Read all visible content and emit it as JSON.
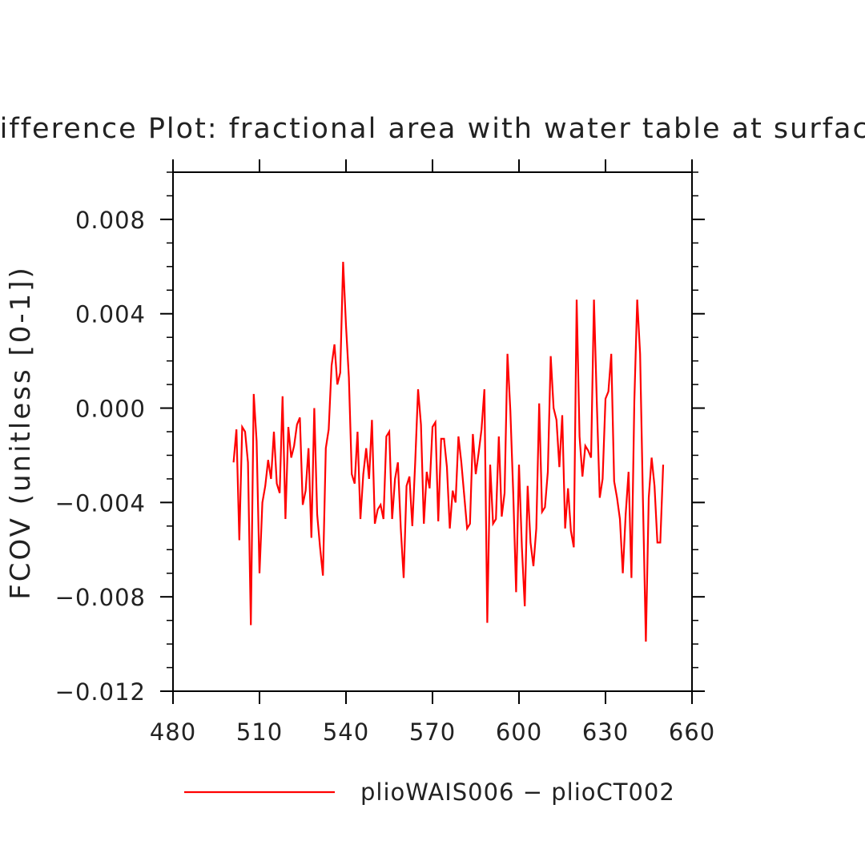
{
  "chart_data": {
    "type": "line",
    "title": "Difference Plot: fractional area with water table at surface",
    "xlabel": "",
    "ylabel": "FCOV   (unitless [0-1])",
    "xlim": [
      480,
      660
    ],
    "ylim": [
      -0.012,
      0.01
    ],
    "xticks": [
      480,
      510,
      540,
      570,
      600,
      630,
      660
    ],
    "xtick_labels": [
      "480",
      "510",
      "540",
      "570",
      "600",
      "630",
      "660"
    ],
    "yticks": [
      -0.012,
      -0.008,
      -0.004,
      0.0,
      0.004,
      0.008
    ],
    "ytick_labels": [
      "−0.012",
      "−0.008",
      "−0.004",
      "0.000",
      "0.004",
      "0.008"
    ],
    "grid": false,
    "legend_position": "bottom",
    "series": [
      {
        "name": "plioWAIS006 − plioCT002",
        "color": "#ff0000",
        "x": [
          501,
          502,
          503,
          504,
          505,
          506,
          507,
          508,
          509,
          510,
          511,
          512,
          513,
          514,
          515,
          516,
          517,
          518,
          519,
          520,
          521,
          522,
          523,
          524,
          525,
          526,
          527,
          528,
          529,
          530,
          531,
          532,
          533,
          534,
          535,
          536,
          537,
          538,
          539,
          540,
          541,
          542,
          543,
          544,
          545,
          546,
          547,
          548,
          549,
          550,
          551,
          552,
          553,
          554,
          555,
          556,
          557,
          558,
          559,
          560,
          561,
          562,
          563,
          564,
          565,
          566,
          567,
          568,
          569,
          570,
          571,
          572,
          573,
          574,
          575,
          576,
          577,
          578,
          579,
          580,
          581,
          582,
          583,
          584,
          585,
          586,
          587,
          588,
          589,
          590,
          591,
          592,
          593,
          594,
          595,
          596,
          597,
          598,
          599,
          600,
          601,
          602,
          603,
          604,
          605,
          606,
          607,
          608,
          609,
          610,
          611,
          612,
          613,
          614,
          615,
          616,
          617,
          618,
          619,
          620,
          621,
          622,
          623,
          624,
          625,
          626,
          627,
          628,
          629,
          630,
          631,
          632,
          633,
          634,
          635,
          636,
          637,
          638,
          639,
          640,
          641,
          642,
          643,
          644,
          645,
          646,
          647,
          648,
          649,
          650
        ],
        "values": [
          -0.0023,
          -0.0009,
          -0.0056,
          -0.0008,
          -0.001,
          -0.0023,
          -0.0092,
          0.0006,
          -0.0014,
          -0.007,
          -0.004,
          -0.0033,
          -0.0022,
          -0.003,
          -0.001,
          -0.0032,
          -0.0036,
          0.0005,
          -0.0047,
          -0.0008,
          -0.0021,
          -0.0016,
          -0.0007,
          -0.0004,
          -0.0041,
          -0.0035,
          -0.0017,
          -0.0055,
          0.0,
          -0.0045,
          -0.0059,
          -0.0071,
          -0.0017,
          -0.0009,
          0.0018,
          0.0027,
          0.001,
          0.0015,
          0.0062,
          0.0035,
          0.0013,
          -0.0028,
          -0.0032,
          -0.001,
          -0.0047,
          -0.0028,
          -0.0017,
          -0.003,
          -0.0005,
          -0.0049,
          -0.0043,
          -0.0041,
          -0.0047,
          -0.0012,
          -0.001,
          -0.0047,
          -0.003,
          -0.0023,
          -0.0051,
          -0.0072,
          -0.0033,
          -0.0029,
          -0.005,
          -0.0023,
          0.0008,
          -0.0007,
          -0.0049,
          -0.0027,
          -0.0034,
          -0.0008,
          -0.0006,
          -0.0048,
          -0.0013,
          -0.0013,
          -0.0025,
          -0.0051,
          -0.0035,
          -0.004,
          -0.0012,
          -0.0023,
          -0.0037,
          -0.0051,
          -0.0049,
          -0.0011,
          -0.0028,
          -0.0019,
          -0.0009,
          0.0008,
          -0.0091,
          -0.0024,
          -0.0049,
          -0.0047,
          -0.0012,
          -0.0046,
          -0.0036,
          0.0023,
          -0.0001,
          -0.0036,
          -0.0078,
          -0.0024,
          -0.0059,
          -0.0084,
          -0.0033,
          -0.0057,
          -0.0067,
          -0.0051,
          0.0002,
          -0.0044,
          -0.0042,
          -0.0027,
          0.0022,
          0.0,
          -0.0005,
          -0.0025,
          -0.0003,
          -0.0051,
          -0.0034,
          -0.0052,
          -0.0059,
          0.0046,
          -0.0012,
          -0.0029,
          -0.0016,
          -0.0018,
          -0.0021,
          0.0046,
          0.0002,
          -0.0038,
          -0.003,
          0.0004,
          0.0007,
          0.0023,
          -0.0031,
          -0.0038,
          -0.0047,
          -0.007,
          -0.0045,
          -0.0027,
          -0.0072,
          0.0003,
          0.0046,
          0.0023,
          -0.004,
          -0.0099,
          -0.0038,
          -0.0021,
          -0.0033,
          -0.0057,
          -0.0057,
          -0.0024
        ]
      }
    ]
  }
}
